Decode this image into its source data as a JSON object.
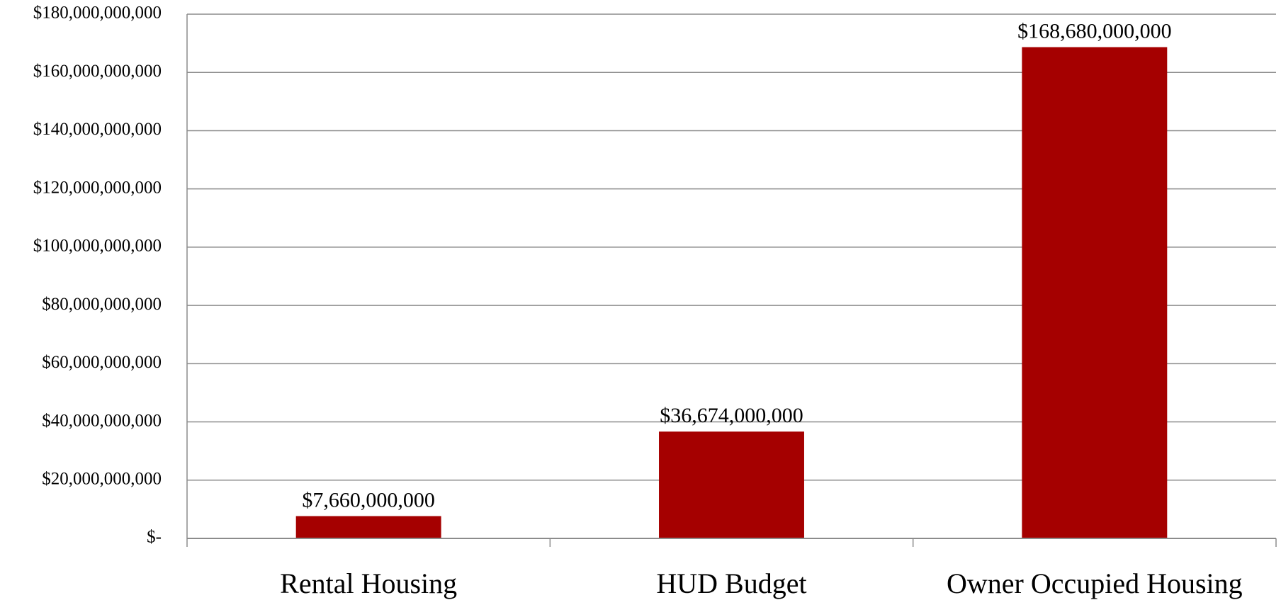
{
  "chart_data": {
    "type": "bar",
    "categories": [
      "Rental Housing",
      "HUD Budget",
      "Owner Occupied Housing"
    ],
    "values": [
      7660000000,
      36674000000,
      168680000000
    ],
    "value_labels": [
      "$7,660,000,000",
      "$36,674,000,000",
      "$168,680,000,000"
    ],
    "color": "#a50000",
    "ylim": [
      0,
      180000000000
    ],
    "yticks": [
      {
        "value": 0,
        "label": "$-"
      },
      {
        "value": 20000000000,
        "label": "$20,000,000,000"
      },
      {
        "value": 40000000000,
        "label": "$40,000,000,000"
      },
      {
        "value": 60000000000,
        "label": "$60,000,000,000"
      },
      {
        "value": 80000000000,
        "label": "$80,000,000,000"
      },
      {
        "value": 100000000000,
        "label": "$100,000,000,000"
      },
      {
        "value": 120000000000,
        "label": "$120,000,000,000"
      },
      {
        "value": 140000000000,
        "label": "$140,000,000,000"
      },
      {
        "value": 160000000000,
        "label": "$160,000,000,000"
      },
      {
        "value": 180000000000,
        "label": "$180,000,000,000"
      }
    ],
    "grid": true
  }
}
